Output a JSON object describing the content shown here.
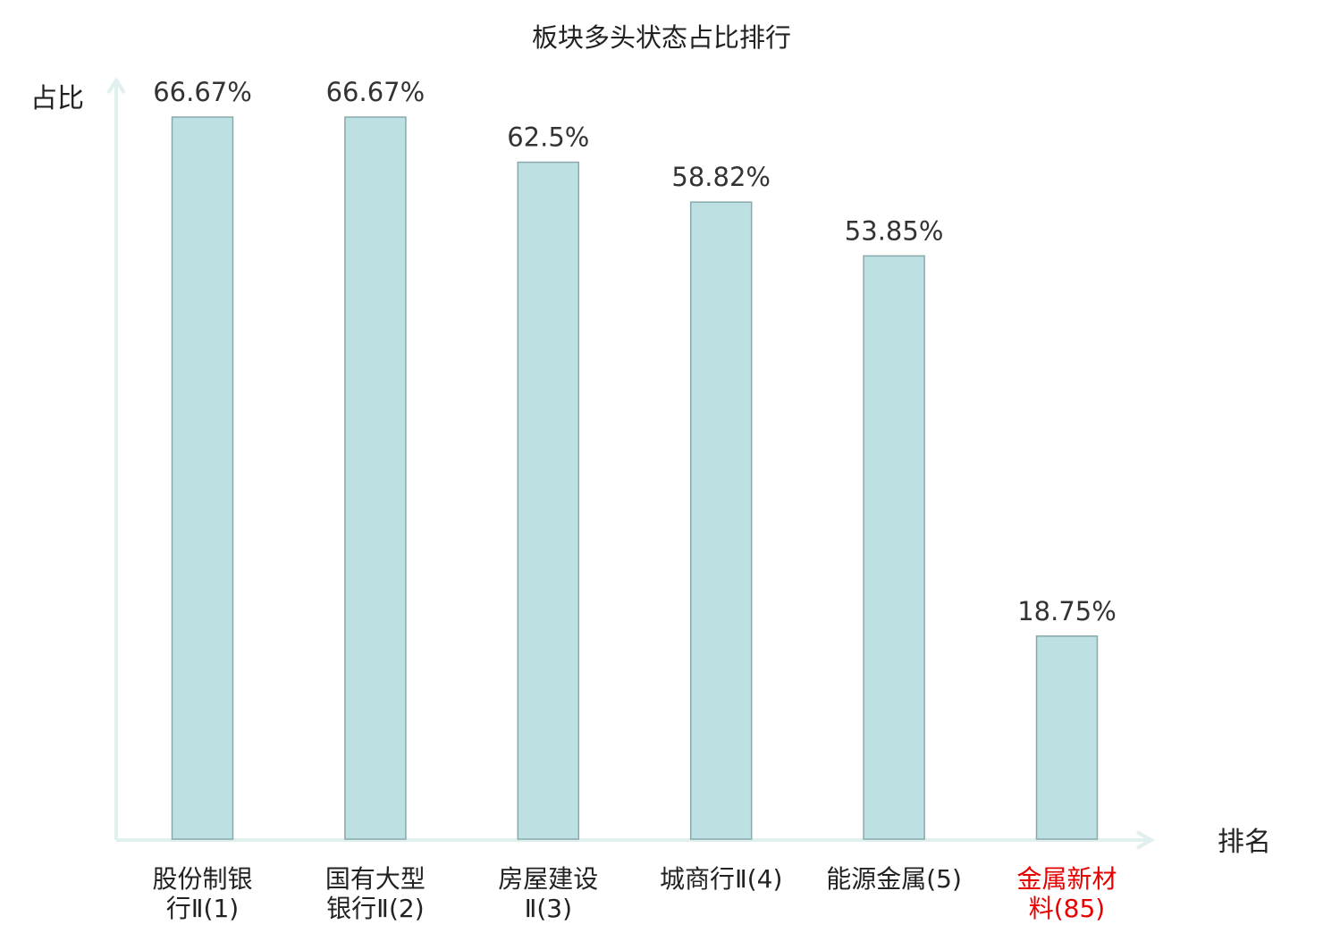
{
  "chart_data": {
    "type": "bar",
    "title": "板块多头状态占比排行",
    "xlabel": "排名",
    "ylabel": "占比",
    "ylim": [
      0,
      66.67
    ],
    "grid": false,
    "legend": "none",
    "categories": [
      {
        "lines": [
          "股份制银",
          "行Ⅱ(1)"
        ],
        "highlight": false
      },
      {
        "lines": [
          "国有大型",
          "银行Ⅱ(2)"
        ],
        "highlight": false
      },
      {
        "lines": [
          "房屋建设",
          "Ⅱ(3)"
        ],
        "highlight": false
      },
      {
        "lines": [
          "城商行Ⅱ(4)"
        ],
        "highlight": false
      },
      {
        "lines": [
          "能源金属(5)"
        ],
        "highlight": false
      },
      {
        "lines": [
          "金属新材",
          "料(85)"
        ],
        "highlight": true
      }
    ],
    "values": [
      66.67,
      66.67,
      62.5,
      58.82,
      53.85,
      18.75
    ],
    "value_labels": [
      "66.67%",
      "66.67%",
      "62.5%",
      "58.82%",
      "53.85%",
      "18.75%"
    ],
    "colors": {
      "bar_fill": "#bde0e3",
      "bar_stroke": "#8aa9ab",
      "axis": "#dff0ee",
      "text": "#222222",
      "value_text": "#333333",
      "highlight_text": "#e60000"
    }
  }
}
